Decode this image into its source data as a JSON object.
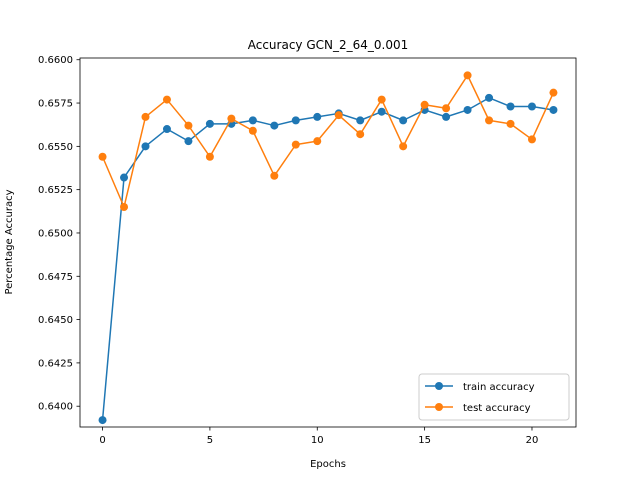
{
  "chart_data": {
    "type": "line",
    "title": "Accuracy GCN_2_64_0.001",
    "xlabel": "Epochs",
    "ylabel": "Percentage Accuracy",
    "xlim": [
      -1.05,
      22.05
    ],
    "ylim": [
      0.6388,
      0.6601
    ],
    "xticks": [
      0,
      5,
      10,
      15,
      20
    ],
    "xtick_labels": [
      "0",
      "5",
      "10",
      "15",
      "20"
    ],
    "yticks": [
      0.64,
      0.6425,
      0.645,
      0.6475,
      0.65,
      0.6525,
      0.655,
      0.6575,
      0.66
    ],
    "ytick_labels": [
      "0.6400",
      "0.6425",
      "0.6450",
      "0.6475",
      "0.6500",
      "0.6525",
      "0.6550",
      "0.6575",
      "0.6600"
    ],
    "grid": false,
    "legend_position": "lower-right",
    "x": [
      0,
      1,
      2,
      3,
      4,
      5,
      6,
      7,
      8,
      9,
      10,
      11,
      12,
      13,
      14,
      15,
      16,
      17,
      18,
      19,
      20,
      21
    ],
    "series": [
      {
        "name": "train accuracy",
        "color": "#1f77b4",
        "values": [
          0.6392,
          0.6532,
          0.655,
          0.656,
          0.6553,
          0.6563,
          0.6563,
          0.6565,
          0.6562,
          0.6565,
          0.6567,
          0.6569,
          0.6565,
          0.657,
          0.6565,
          0.6571,
          0.6567,
          0.6571,
          0.6578,
          0.6573,
          0.6573,
          0.6571
        ]
      },
      {
        "name": "test accuracy",
        "color": "#ff7f0e",
        "values": [
          0.6544,
          0.6515,
          0.6567,
          0.6577,
          0.6562,
          0.6544,
          0.6566,
          0.6559,
          0.6533,
          0.6551,
          0.6553,
          0.6568,
          0.6557,
          0.6577,
          0.655,
          0.6574,
          0.6572,
          0.6591,
          0.6565,
          0.6563,
          0.6554,
          0.6581
        ]
      }
    ]
  }
}
